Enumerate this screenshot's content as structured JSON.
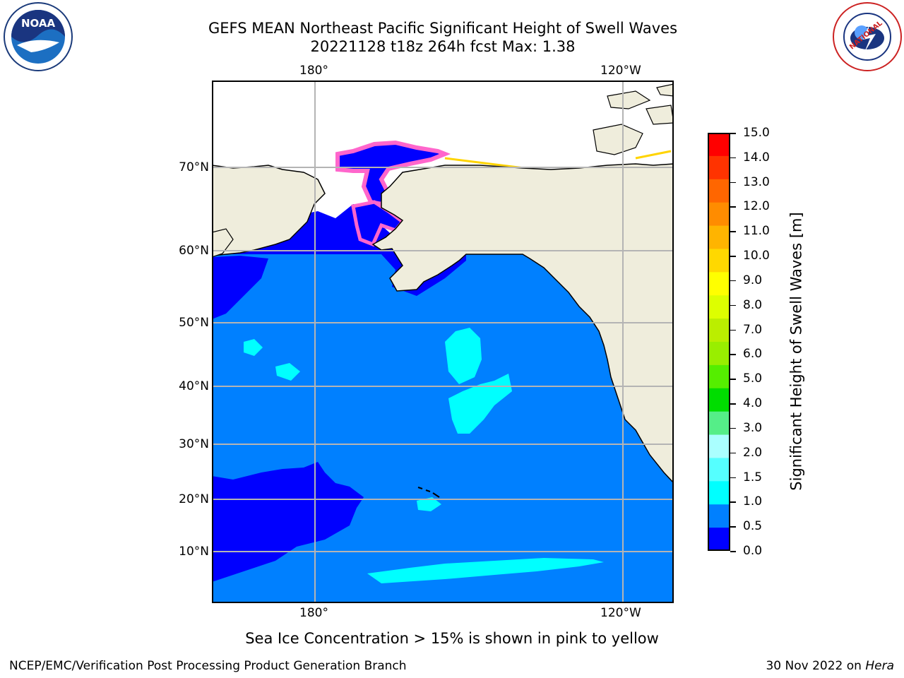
{
  "title": {
    "line1": "GEFS MEAN Northeast Pacific Significant Height of Swell Waves",
    "line2": "20221128 t18z 264h fcst   Max: 1.38"
  },
  "map": {
    "top_lon_labels": [
      "180°",
      "120°W"
    ],
    "bottom_lon_labels": [
      "180°",
      "120°W"
    ],
    "lat_labels": [
      "70°N",
      "60°N",
      "50°N",
      "40°N",
      "30°N",
      "20°N",
      "10°N"
    ],
    "colors": {
      "land": "#efeddc",
      "ocean_0_0.5": "#0000ff",
      "ocean_0.5_1.0": "#0080ff",
      "ocean_1.0_1.5": "#00ffff",
      "ice_pink": "#ff66cc",
      "ice_yellow": "#ffd400",
      "grid": "#b4b4b4"
    }
  },
  "colorbar": {
    "label": "Significant Height of Swell Waves [m]",
    "ticks": [
      "15.0",
      "14.0",
      "13.0",
      "12.0",
      "11.0",
      "10.0",
      "9.0",
      "8.0",
      "7.0",
      "6.0",
      "5.0",
      "4.0",
      "3.0",
      "2.0",
      "1.5",
      "1.0",
      "0.5",
      "0.0"
    ],
    "colors": [
      "#ff0000",
      "#ff3300",
      "#ff6600",
      "#ff8c00",
      "#ffb400",
      "#ffd800",
      "#ffff00",
      "#ddff00",
      "#bbee00",
      "#99ee00",
      "#55ee00",
      "#00dd00",
      "#55ee88",
      "#aaffff",
      "#55ffff",
      "#00ffff",
      "#0080ff",
      "#0000ff"
    ]
  },
  "logos": {
    "noaa_text": "NOAA",
    "nws_text": "NATIONAL WEATHER SERVICE"
  },
  "footer": {
    "note": "Sea Ice Concentration > 15% is shown in pink to yellow",
    "credit": "NCEP/EMC/Verification Post Processing Product Generation Branch",
    "date": "30 Nov 2022 on",
    "machine": "Hera"
  }
}
